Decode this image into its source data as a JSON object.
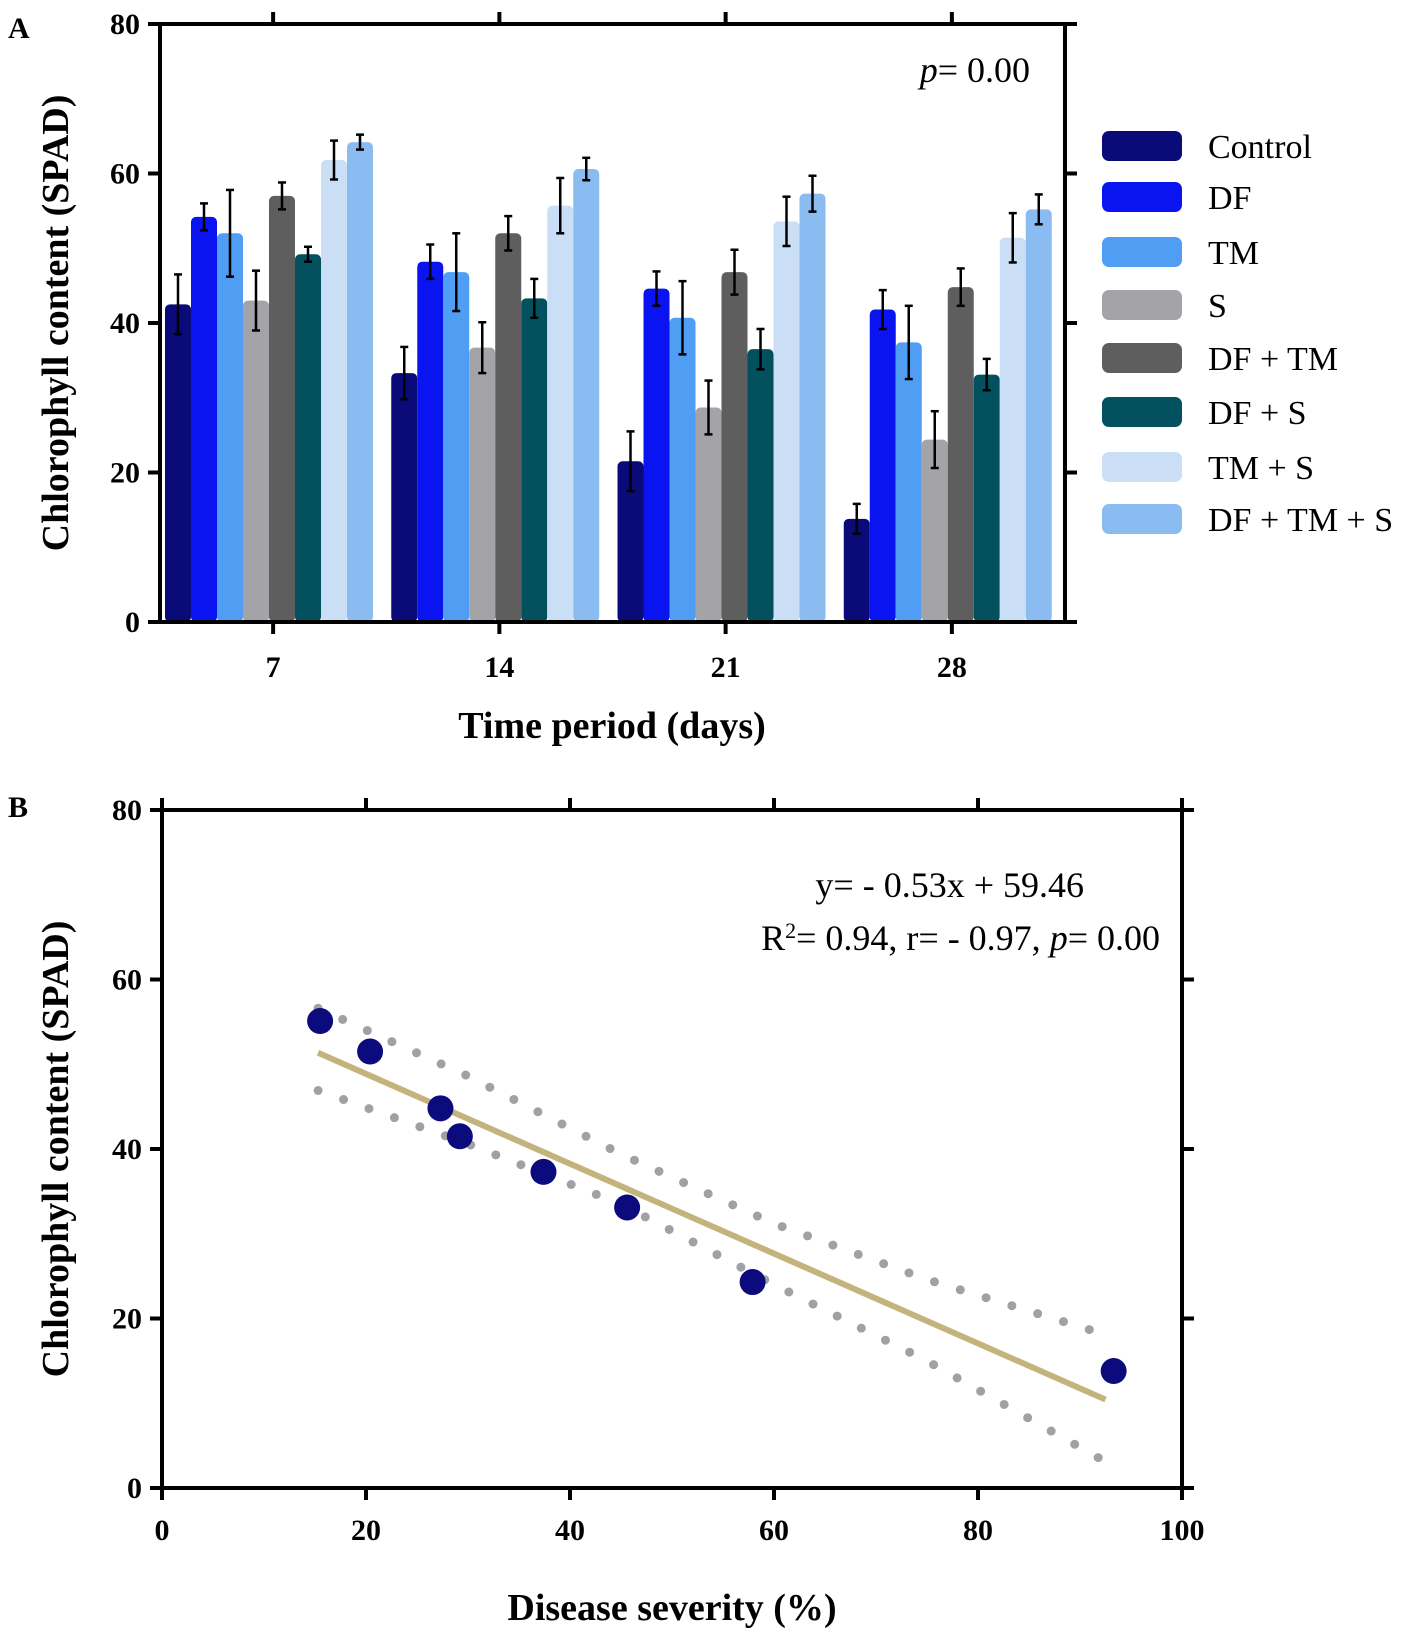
{
  "figure": {
    "panel_a_label": "A",
    "panel_b_label": "B"
  },
  "chart_data": [
    {
      "type": "bar",
      "title": "",
      "xlabel": "Time period (days)",
      "ylabel": "Chlorophyll content (SPAD)",
      "ylim": [
        0,
        80
      ],
      "yticks": [
        "0",
        "20",
        "40",
        "60",
        "80"
      ],
      "categories": [
        "7",
        "14",
        "21",
        "28"
      ],
      "annotation": {
        "p_symbol": "p",
        "p_text": "= 0.00"
      },
      "legend_position": "right",
      "series": [
        {
          "name": "Control",
          "color": "#0a0a78",
          "values": [
            42.5,
            33.3,
            21.5,
            13.8
          ],
          "errors": [
            4.0,
            3.5,
            4.0,
            2.0
          ]
        },
        {
          "name": "DF",
          "color": "#0a14f0",
          "values": [
            54.2,
            48.2,
            44.6,
            41.8
          ],
          "errors": [
            1.8,
            2.3,
            2.3,
            2.6
          ]
        },
        {
          "name": "TM",
          "color": "#4f9ef4",
          "values": [
            52.0,
            46.8,
            40.7,
            37.4
          ],
          "errors": [
            5.8,
            5.2,
            4.9,
            4.9
          ]
        },
        {
          "name": "S",
          "color": "#a3a3a8",
          "values": [
            43.0,
            36.7,
            28.7,
            24.4
          ],
          "errors": [
            4.0,
            3.4,
            3.6,
            3.8
          ]
        },
        {
          "name": "DF + TM",
          "color": "#5e5e5e",
          "values": [
            57.0,
            52.0,
            46.8,
            44.8
          ],
          "errors": [
            1.8,
            2.3,
            3.0,
            2.5
          ]
        },
        {
          "name": "DF + S",
          "color": "#03505e",
          "values": [
            49.2,
            43.3,
            36.5,
            33.1
          ],
          "errors": [
            1.0,
            2.6,
            2.7,
            2.1
          ]
        },
        {
          "name": "TM + S",
          "color": "#cadff5",
          "values": [
            61.8,
            55.7,
            53.6,
            51.4
          ],
          "errors": [
            2.6,
            3.7,
            3.3,
            3.3
          ]
        },
        {
          "name": "DF + TM + S",
          "color": "#8bbcf1",
          "values": [
            64.2,
            60.6,
            57.3,
            55.2
          ],
          "errors": [
            1.0,
            1.5,
            2.4,
            2.0
          ]
        }
      ]
    },
    {
      "type": "scatter",
      "title": "",
      "xlabel": "Disease severity (%)",
      "ylabel": "Chlorophyll content (SPAD)",
      "xlim": [
        0,
        100
      ],
      "ylim": [
        0,
        80
      ],
      "xticks": [
        "0",
        "20",
        "40",
        "60",
        "80",
        "100"
      ],
      "yticks": [
        "0",
        "20",
        "40",
        "60",
        "80"
      ],
      "point_color": "#0b0b7d",
      "fit_color": "#c5b37d",
      "band_color": "#a0a0a6",
      "points": [
        {
          "x": 15.5,
          "y": 55.1
        },
        {
          "x": 20.4,
          "y": 51.5
        },
        {
          "x": 27.3,
          "y": 44.8
        },
        {
          "x": 29.2,
          "y": 41.5
        },
        {
          "x": 37.4,
          "y": 37.3
        },
        {
          "x": 45.6,
          "y": 33.1
        },
        {
          "x": 57.9,
          "y": 24.3
        },
        {
          "x": 93.3,
          "y": 13.8
        }
      ],
      "fit": {
        "slope": -0.53,
        "intercept": 59.46,
        "x_range": [
          15.3,
          92.5
        ]
      },
      "upper_band": [
        [
          15.3,
          56.6
        ],
        [
          30,
          48.6
        ],
        [
          45,
          39.4
        ],
        [
          60,
          31.2
        ],
        [
          75,
          24.6
        ],
        [
          92.5,
          18.1
        ]
      ],
      "lower_band": [
        [
          15.3,
          46.9
        ],
        [
          30,
          40.6
        ],
        [
          45,
          33.5
        ],
        [
          60,
          24.0
        ],
        [
          75,
          15.0
        ],
        [
          92.5,
          3.1
        ]
      ],
      "equation": "y= - 0.53x + 59.46",
      "stats": {
        "r2_prefix": "R",
        "r2_exp": "2",
        "r2_body": "= 0.94, r= - 0.97, ",
        "p_symbol": "p",
        "p_text": "= 0.00"
      }
    }
  ]
}
